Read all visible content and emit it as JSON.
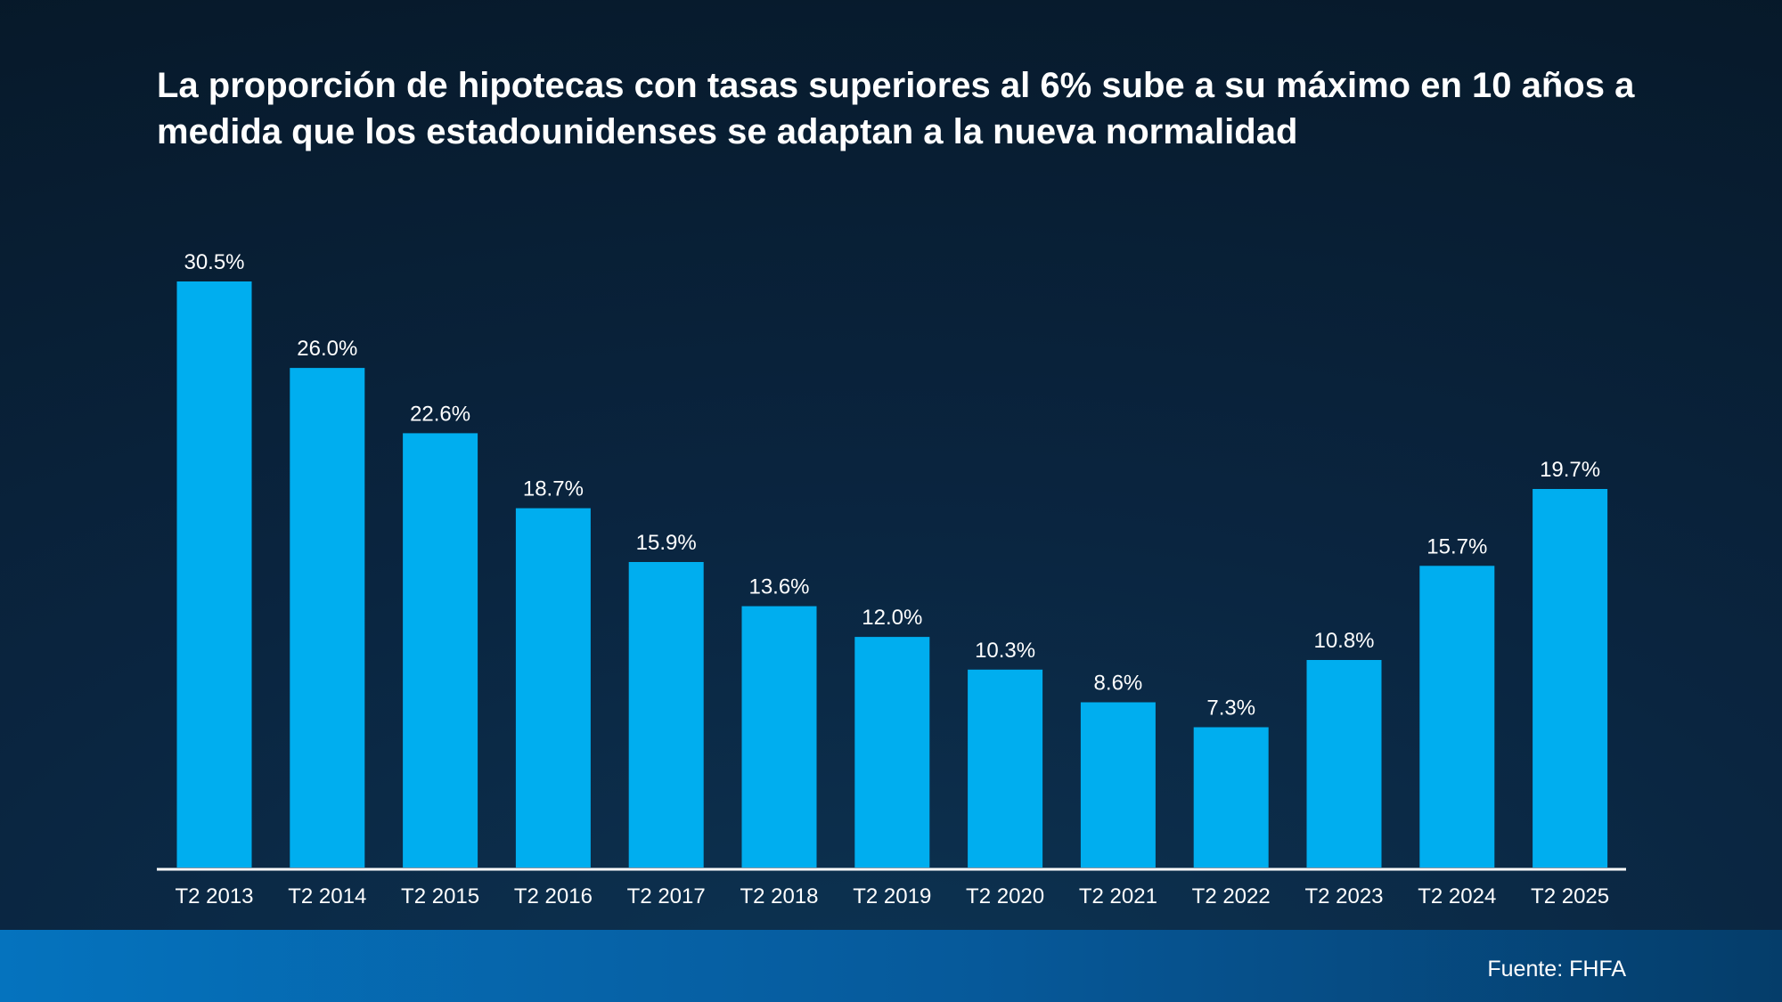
{
  "title": "La proporción de hipotecas con tasas superiores al 6% sube a su máximo en 10 años a medida que los estadounidenses se adaptan a la nueva normalidad",
  "source": "Fuente: FHFA",
  "colors": {
    "bar": "#00aeef",
    "axis": "#ffffff",
    "text": "#ffffff"
  },
  "chart_data": {
    "type": "bar",
    "title": "La proporción de hipotecas con tasas superiores al 6% sube a su máximo en 10 años a medida que los estadounidenses se adaptan a la nueva normalidad",
    "categories": [
      "T2 2013",
      "T2 2014",
      "T2 2015",
      "T2 2016",
      "T2 2017",
      "T2 2018",
      "T2 2019",
      "T2 2020",
      "T2 2021",
      "T2 2022",
      "T2 2023",
      "T2 2024",
      "T2 2025"
    ],
    "values": [
      30.5,
      26.0,
      22.6,
      18.7,
      15.9,
      13.6,
      12.0,
      10.3,
      8.6,
      7.3,
      10.8,
      15.7,
      19.7
    ],
    "data_labels": [
      "30.5%",
      "26.0%",
      "22.6%",
      "18.7%",
      "15.9%",
      "13.6%",
      "12.0%",
      "10.3%",
      "8.6%",
      "7.3%",
      "10.8%",
      "15.7%",
      "19.7%"
    ],
    "xlabel": "",
    "ylabel": "",
    "ylim": [
      0,
      30.5
    ],
    "grid": false,
    "legend": "none"
  }
}
